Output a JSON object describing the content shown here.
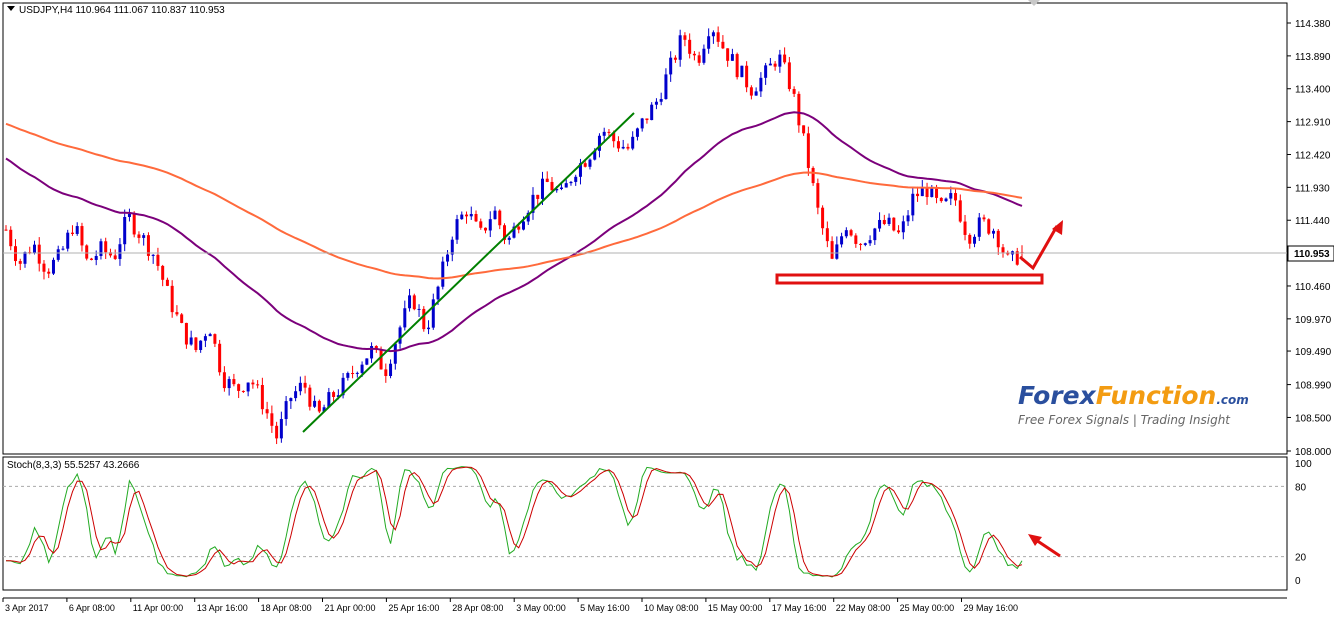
{
  "header": {
    "symbol_line": "USDJPY,H4  110.964 111.067 110.837 110.953"
  },
  "indicator": {
    "label": "Stoch(8,3,3) 55.5257 43.2666",
    "levels": [
      "100",
      "80",
      "20",
      "0"
    ]
  },
  "current_price": "110.953",
  "watermark": {
    "brand_part1": "Forex",
    "brand_part2": "Function",
    "brand_suffix": ".com",
    "tagline": "Free Forex Signals | Trading Insight"
  },
  "colors": {
    "bull": "#0000cc",
    "bear": "#ff0000",
    "ma_fast": "#7b007b",
    "ma_slow": "#ff6a3c",
    "trendline": "#008000",
    "stoch_k": "#22aa22",
    "stoch_d": "#cc0000",
    "annotation": "#e01010",
    "watermark_blue": "#2a4f9e",
    "watermark_orange": "#f39c12"
  },
  "chart_data": {
    "type": "candlestick",
    "instrument": "USDJPY",
    "timeframe": "H4",
    "ohlc_last": {
      "open": 110.964,
      "high": 111.067,
      "low": 110.837,
      "close": 110.953
    },
    "y_ticks": [
      "114.380",
      "113.890",
      "113.400",
      "112.910",
      "112.420",
      "111.930",
      "111.440",
      "110.953",
      "110.460",
      "109.970",
      "109.490",
      "108.990",
      "108.500",
      "108.000"
    ],
    "ylim": [
      108.0,
      114.5
    ],
    "x_ticks": [
      "3 Apr 2017",
      "6 Apr 08:00",
      "11 Apr 00:00",
      "13 Apr 16:00",
      "18 Apr 08:00",
      "21 Apr 00:00",
      "25 Apr 16:00",
      "28 Apr 08:00",
      "3 May 00:00",
      "5 May 16:00",
      "10 May 08:00",
      "15 May 00:00",
      "17 May 16:00",
      "22 May 08:00",
      "25 May 00:00",
      "29 May 16:00"
    ],
    "close_path": [
      111.3,
      110.8,
      111.1,
      110.7,
      110.9,
      111.4,
      110.8,
      111.0,
      110.9,
      111.5,
      111.2,
      110.9,
      110.3,
      109.8,
      109.5,
      109.9,
      109.1,
      108.9,
      109.1,
      108.7,
      108.2,
      108.8,
      109.0,
      108.5,
      108.8,
      109.0,
      109.3,
      109.5,
      109.2,
      109.8,
      110.3,
      109.8,
      110.5,
      111.3,
      111.6,
      111.2,
      111.6,
      111.1,
      111.5,
      111.8,
      112.0,
      111.8,
      112.2,
      112.4,
      112.8,
      112.6,
      112.5,
      112.9,
      113.2,
      113.7,
      114.2,
      113.8,
      114.4,
      114.0,
      113.7,
      113.4,
      113.6,
      113.9,
      113.4,
      112.5,
      111.5,
      110.8,
      111.4,
      111.1,
      111.3,
      111.4,
      111.2,
      111.8,
      111.9,
      111.6,
      111.8,
      111.2,
      111.4,
      111.3,
      110.8,
      110.95
    ]
  }
}
